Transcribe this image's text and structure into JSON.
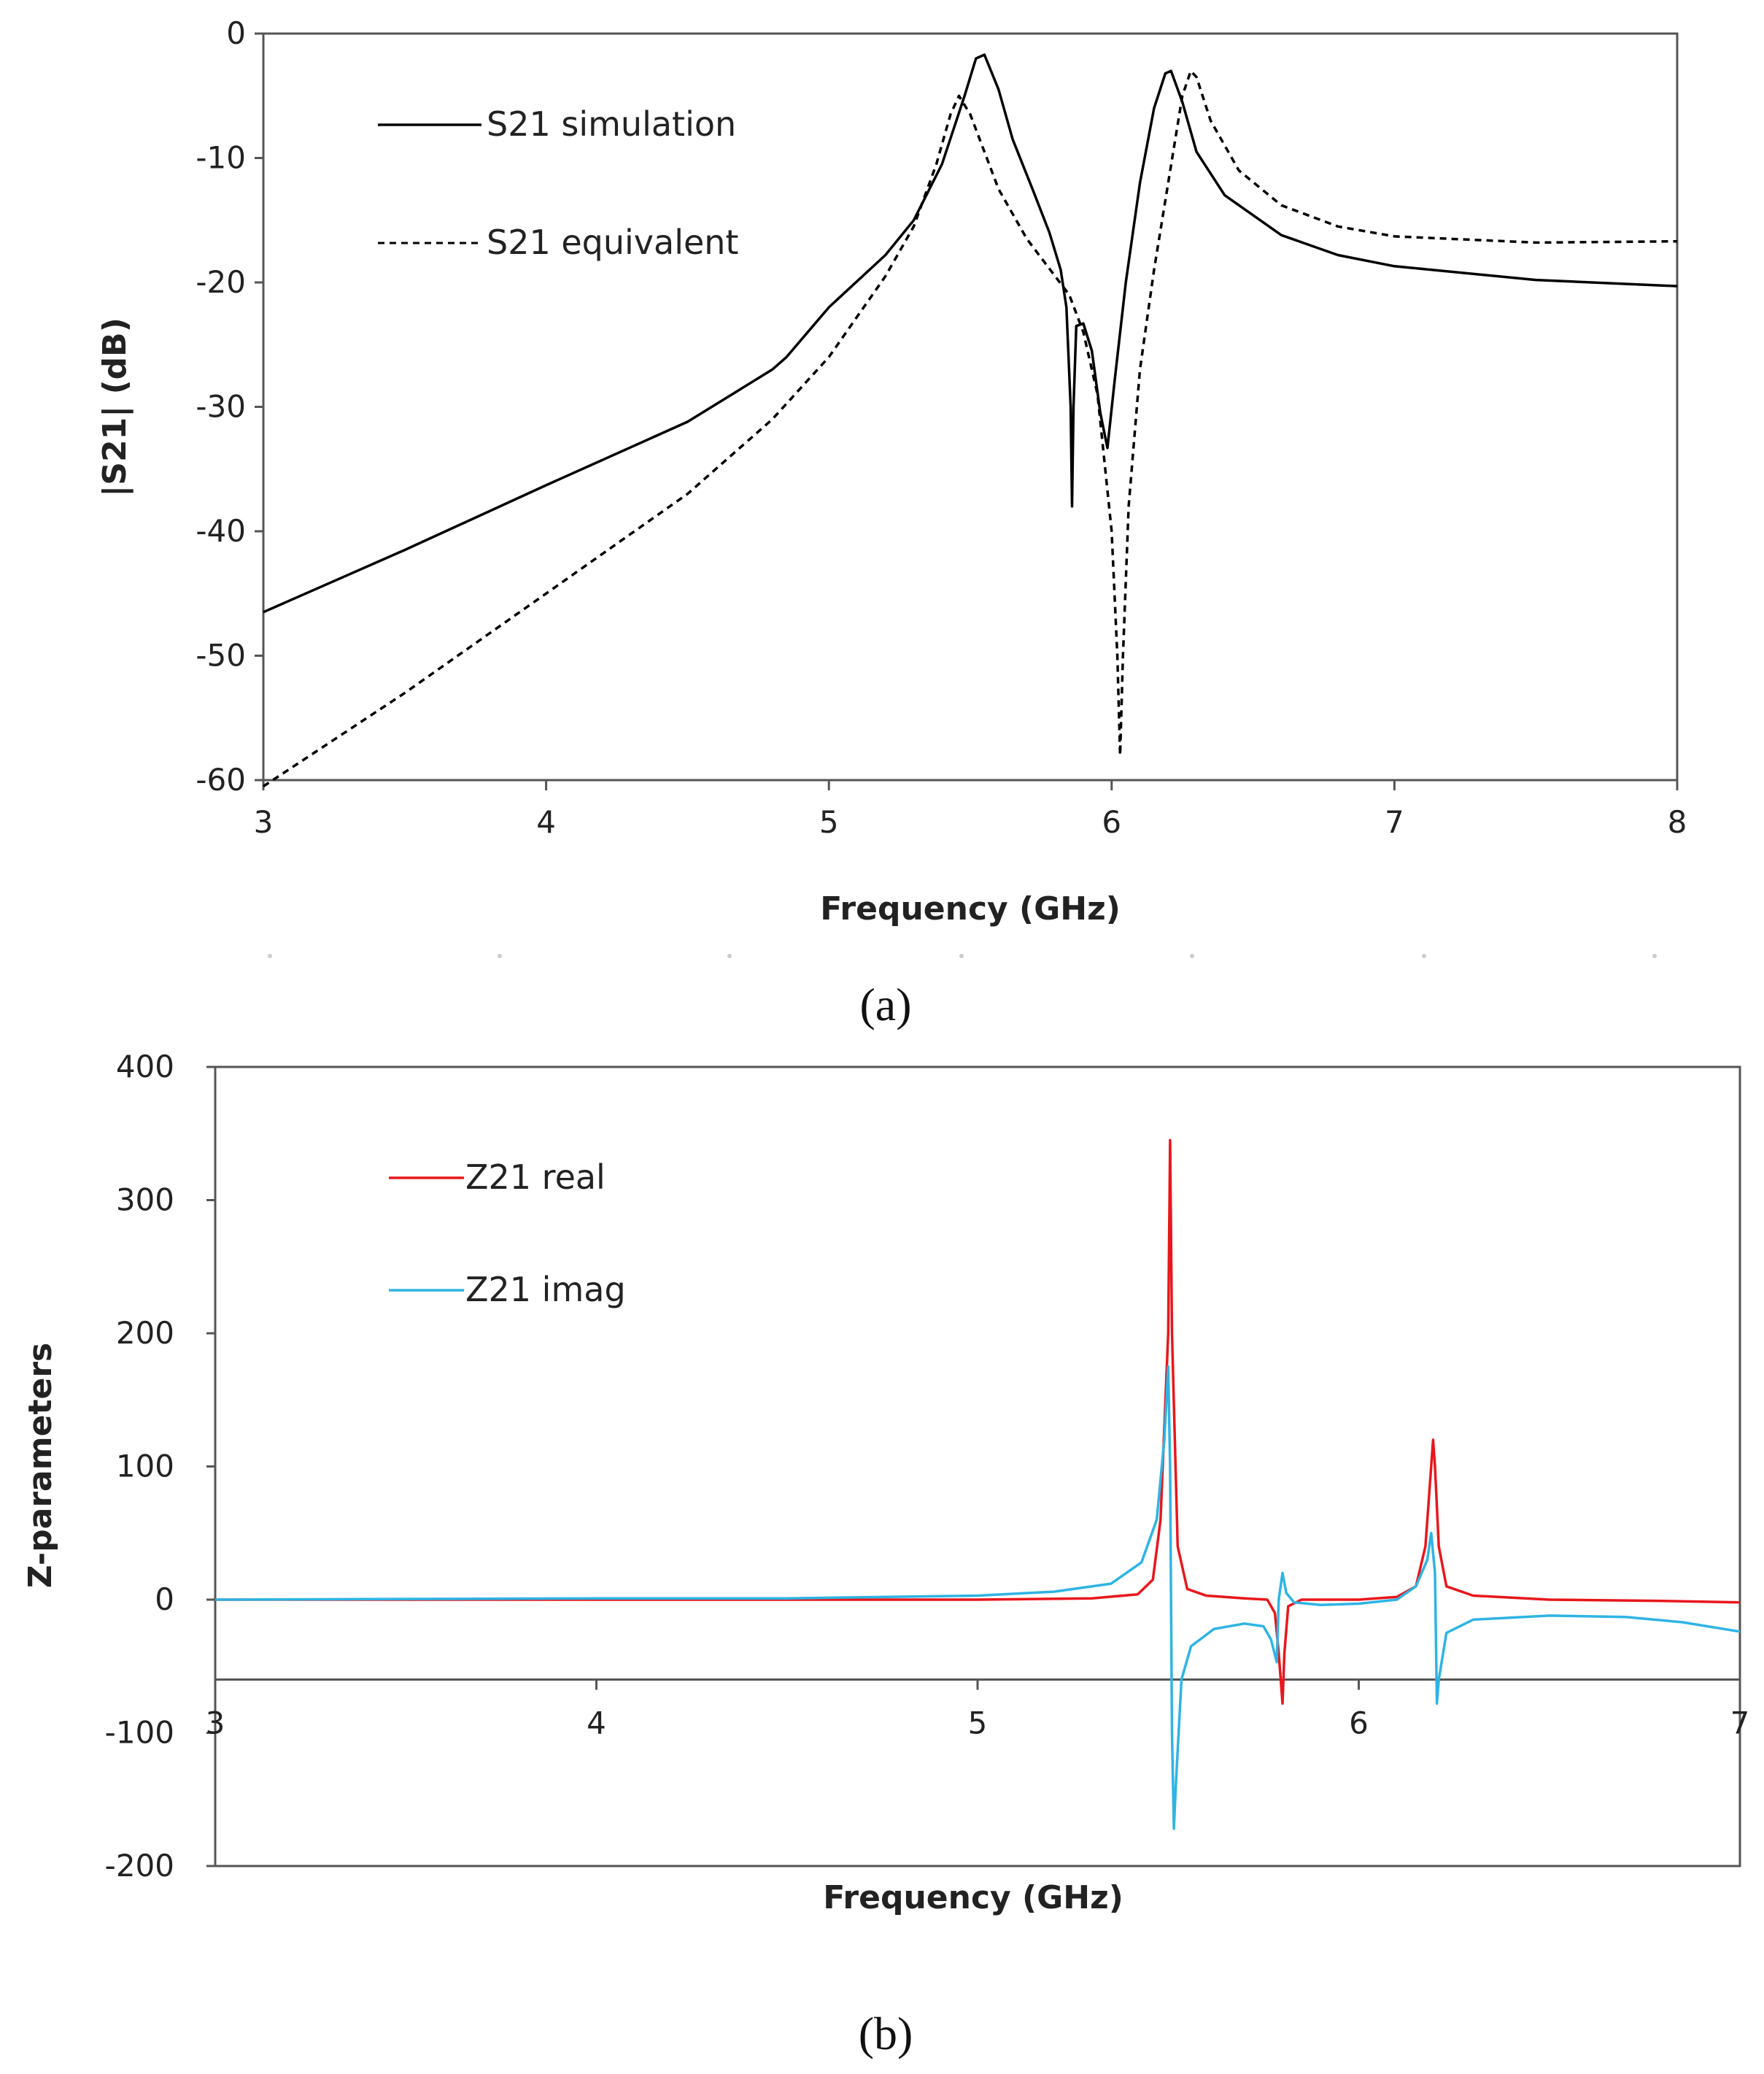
{
  "chart_data": [
    {
      "type": "line",
      "panel_label": "(a)",
      "xlabel": "Frequency (GHz)",
      "ylabel": "|S21| (dB)",
      "xlim": [
        3,
        8
      ],
      "ylim": [
        -60,
        0
      ],
      "xticks": [
        "3",
        "4",
        "5",
        "6",
        "7",
        "8"
      ],
      "yticks": [
        "0",
        "-10",
        "-20",
        "-30",
        "-40",
        "-50",
        "-60"
      ],
      "grid": false,
      "legend_position": "top-left",
      "series": [
        {
          "name": "S21 simulation",
          "color": "#000000",
          "dash": "solid",
          "points": [
            [
              3.0,
              -46.5
            ],
            [
              3.5,
              -41.5
            ],
            [
              4.0,
              -36.3
            ],
            [
              4.5,
              -31.2
            ],
            [
              4.8,
              -27.0
            ],
            [
              4.85,
              -26.0
            ],
            [
              5.0,
              -22.0
            ],
            [
              5.2,
              -17.8
            ],
            [
              5.3,
              -15.0
            ],
            [
              5.4,
              -10.5
            ],
            [
              5.48,
              -5.0
            ],
            [
              5.52,
              -2.0
            ],
            [
              5.55,
              -1.7
            ],
            [
              5.6,
              -4.5
            ],
            [
              5.65,
              -8.5
            ],
            [
              5.72,
              -12.5
            ],
            [
              5.78,
              -16.0
            ],
            [
              5.82,
              -19.0
            ],
            [
              5.84,
              -22.0
            ],
            [
              5.855,
              -30.0
            ],
            [
              5.86,
              -38.0
            ],
            [
              5.865,
              -30.0
            ],
            [
              5.875,
              -23.5
            ],
            [
              5.9,
              -23.3
            ],
            [
              5.93,
              -25.5
            ],
            [
              5.96,
              -30.5
            ],
            [
              5.985,
              -33.3
            ],
            [
              6.01,
              -28.0
            ],
            [
              6.05,
              -20.0
            ],
            [
              6.1,
              -12.0
            ],
            [
              6.15,
              -6.0
            ],
            [
              6.19,
              -3.2
            ],
            [
              6.21,
              -3.0
            ],
            [
              6.25,
              -5.5
            ],
            [
              6.3,
              -9.5
            ],
            [
              6.4,
              -13.0
            ],
            [
              6.6,
              -16.2
            ],
            [
              6.8,
              -17.8
            ],
            [
              7.0,
              -18.7
            ],
            [
              7.5,
              -19.8
            ],
            [
              8.0,
              -20.3
            ]
          ]
        },
        {
          "name": "S21 equivalent",
          "color": "#000000",
          "dash": "dashed",
          "points": [
            [
              3.0,
              -60.5
            ],
            [
              3.5,
              -53.0
            ],
            [
              4.0,
              -45.0
            ],
            [
              4.5,
              -37.0
            ],
            [
              4.8,
              -31.0
            ],
            [
              5.0,
              -26.0
            ],
            [
              5.2,
              -19.5
            ],
            [
              5.3,
              -15.5
            ],
            [
              5.38,
              -10.5
            ],
            [
              5.43,
              -6.5
            ],
            [
              5.46,
              -5.0
            ],
            [
              5.5,
              -6.5
            ],
            [
              5.55,
              -9.5
            ],
            [
              5.6,
              -12.5
            ],
            [
              5.7,
              -16.5
            ],
            [
              5.8,
              -19.5
            ],
            [
              5.85,
              -21.0
            ],
            [
              5.9,
              -24.0
            ],
            [
              5.95,
              -29.0
            ],
            [
              6.0,
              -40.0
            ],
            [
              6.02,
              -50.0
            ],
            [
              6.03,
              -58.0
            ],
            [
              6.04,
              -50.0
            ],
            [
              6.06,
              -38.0
            ],
            [
              6.1,
              -27.0
            ],
            [
              6.15,
              -19.0
            ],
            [
              6.2,
              -12.0
            ],
            [
              6.25,
              -5.0
            ],
            [
              6.28,
              -3.0
            ],
            [
              6.3,
              -3.5
            ],
            [
              6.35,
              -7.0
            ],
            [
              6.45,
              -11.0
            ],
            [
              6.6,
              -13.8
            ],
            [
              6.8,
              -15.5
            ],
            [
              7.0,
              -16.3
            ],
            [
              7.5,
              -16.8
            ],
            [
              8.0,
              -16.7
            ]
          ]
        }
      ]
    },
    {
      "type": "line",
      "panel_label": "(b)",
      "xlabel": "Frequency (GHz)",
      "ylabel": "Z-parameters",
      "xlim": [
        3,
        7
      ],
      "ylim": [
        -200,
        400
      ],
      "x_axis_crossing_y": -60,
      "xticks": [
        "3",
        "4",
        "5",
        "6",
        "7"
      ],
      "yticks": [
        "400",
        "300",
        "200",
        "100",
        "0",
        "-100",
        "-200"
      ],
      "grid": false,
      "legend_position": "top-left",
      "series": [
        {
          "name": "Z21 real",
          "color": "#e8171c",
          "dash": "solid",
          "points": [
            [
              3.0,
              0
            ],
            [
              4.0,
              0
            ],
            [
              5.0,
              0
            ],
            [
              5.3,
              1
            ],
            [
              5.42,
              4
            ],
            [
              5.46,
              15
            ],
            [
              5.48,
              60
            ],
            [
              5.5,
              200
            ],
            [
              5.505,
              345
            ],
            [
              5.51,
              200
            ],
            [
              5.525,
              40
            ],
            [
              5.55,
              8
            ],
            [
              5.6,
              3
            ],
            [
              5.7,
              1
            ],
            [
              5.76,
              0
            ],
            [
              5.78,
              -10
            ],
            [
              5.79,
              -40
            ],
            [
              5.8,
              -78
            ],
            [
              5.805,
              -40
            ],
            [
              5.815,
              -5
            ],
            [
              5.85,
              0
            ],
            [
              6.0,
              0
            ],
            [
              6.1,
              2
            ],
            [
              6.15,
              10
            ],
            [
              6.175,
              40
            ],
            [
              6.19,
              100
            ],
            [
              6.195,
              120
            ],
            [
              6.2,
              100
            ],
            [
              6.21,
              40
            ],
            [
              6.23,
              10
            ],
            [
              6.3,
              3
            ],
            [
              6.5,
              0
            ],
            [
              6.8,
              -1
            ],
            [
              7.0,
              -2
            ]
          ]
        },
        {
          "name": "Z21 imag",
          "color": "#2eb4e4",
          "dash": "solid",
          "points": [
            [
              3.0,
              0
            ],
            [
              4.0,
              1
            ],
            [
              4.5,
              1
            ],
            [
              5.0,
              3
            ],
            [
              5.2,
              6
            ],
            [
              5.35,
              12
            ],
            [
              5.43,
              28
            ],
            [
              5.47,
              60
            ],
            [
              5.49,
              120
            ],
            [
              5.5,
              175
            ],
            [
              5.505,
              100
            ],
            [
              5.51,
              -100
            ],
            [
              5.515,
              -172
            ],
            [
              5.52,
              -140
            ],
            [
              5.535,
              -60
            ],
            [
              5.56,
              -35
            ],
            [
              5.62,
              -22
            ],
            [
              5.7,
              -18
            ],
            [
              5.75,
              -20
            ],
            [
              5.77,
              -30
            ],
            [
              5.785,
              -47
            ],
            [
              5.79,
              0
            ],
            [
              5.8,
              20
            ],
            [
              5.81,
              5
            ],
            [
              5.83,
              -2
            ],
            [
              5.9,
              -4
            ],
            [
              6.0,
              -3
            ],
            [
              6.1,
              0
            ],
            [
              6.15,
              10
            ],
            [
              6.18,
              30
            ],
            [
              6.19,
              50
            ],
            [
              6.2,
              20
            ],
            [
              6.205,
              -78
            ],
            [
              6.21,
              -60
            ],
            [
              6.23,
              -25
            ],
            [
              6.3,
              -15
            ],
            [
              6.5,
              -12
            ],
            [
              6.7,
              -13
            ],
            [
              6.85,
              -17
            ],
            [
              7.0,
              -24
            ]
          ]
        }
      ]
    }
  ]
}
